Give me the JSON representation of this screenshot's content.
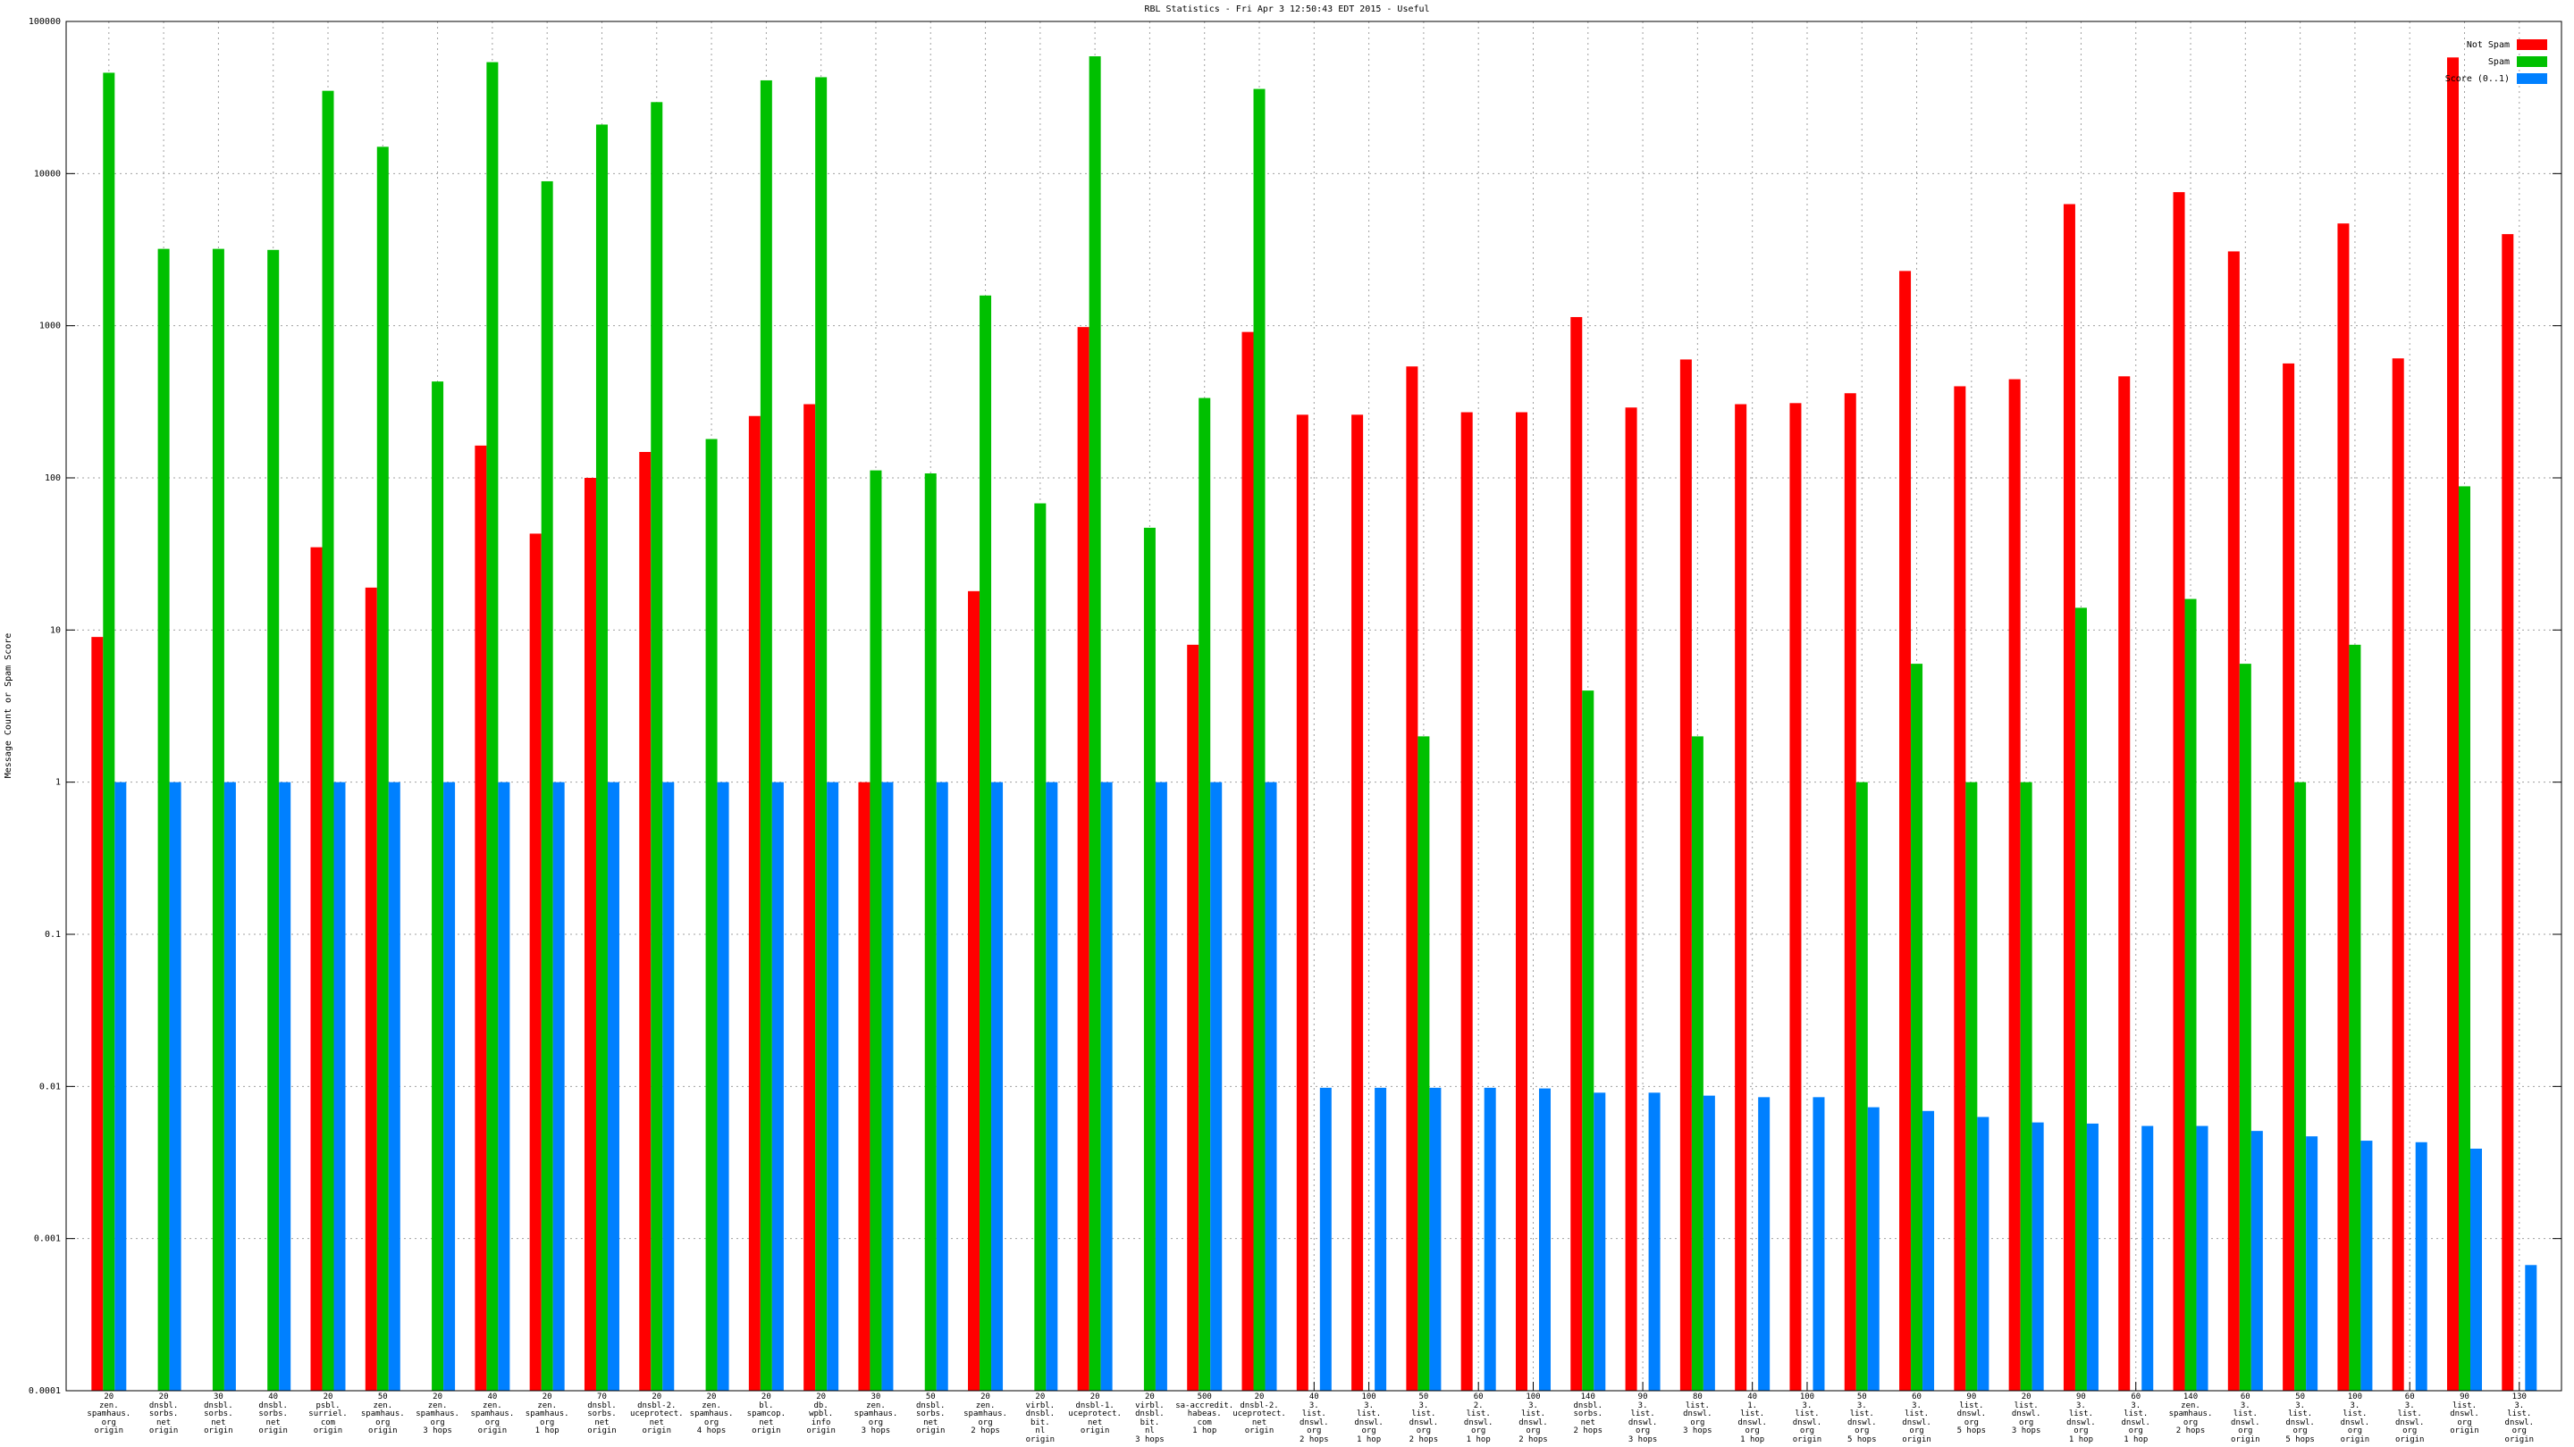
{
  "chart_data": {
    "type": "bar",
    "title": "RBL Statistics - Fri Apr  3 12:50:43 EDT 2015 - Useful",
    "y_label": "Message Count or Spam Score",
    "log_y": true,
    "grid": true,
    "legend": "upper right",
    "ylim": [
      0.0001,
      100000
    ],
    "yticks": [
      0.0001,
      0.001,
      0.01,
      0.1,
      1,
      10,
      100,
      1000,
      10000,
      100000
    ],
    "categories": [
      "20\nzen.\nspamhaus.\norg\norigin",
      "20\ndnsbl.\nsorbs.\nnet\norigin",
      "30\ndnsbl.\nsorbs.\nnet\norigin",
      "40\ndnsbl.\nsorbs.\nnet\norigin",
      "20\npsbl.\nsurriel.\ncom\norigin",
      "50\nzen.\nspamhaus.\norg\norigin",
      "20\nzen.\nspamhaus.\norg\n3 hops",
      "40\nzen.\nspamhaus.\norg\norigin",
      "20\nzen.\nspamhaus.\norg\n1 hop",
      "70\ndnsbl.\nsorbs.\nnet\norigin",
      "20\ndnsbl-2.\nuceprotect.\nnet\norigin",
      "20\nzen.\nspamhaus.\norg\n4 hops",
      "20\nbl.\nspamcop.\nnet\norigin",
      "20\ndb.\nwpbl.\ninfo\norigin",
      "30\nzen.\nspamhaus.\norg\n3 hops",
      "50\ndnsbl.\nsorbs.\nnet\norigin",
      "20\nzen.\nspamhaus.\norg\n2 hops",
      "20\nvirbl.\ndnsbl.\nbit.\nnl\norigin",
      "20\ndnsbl-1.\nuceprotect.\nnet\norigin",
      "20\nvirbl.\ndnsbl.\nbit.\nnl\n3 hops",
      "500\nsa-accredit.\nhabeas.\ncom\n1 hop",
      "20\ndnsbl-2.\nuceprotect.\nnet\norigin",
      "40\n3.\nlist.\ndnswl.\norg\n2 hops",
      "100\n3.\nlist.\ndnswl.\norg\n1 hop",
      "50\n3.\nlist.\ndnswl.\norg\n2 hops",
      "60\n2.\nlist.\ndnswl.\norg\n1 hop",
      "100\n3.\nlist.\ndnswl.\norg\n2 hops",
      "140\ndnsbl.\nsorbs.\nnet\n2 hops",
      "90\n3.\nlist.\ndnswl.\norg\n3 hops",
      "80\nlist.\ndnswl.\norg\n3 hops",
      "40\n1.\nlist.\ndnswl.\norg\n1 hop",
      "100\n3.\nlist.\ndnswl.\norg\norigin",
      "50\n3.\nlist.\ndnswl.\norg\n5 hops",
      "60\n3.\nlist.\ndnswl.\norg\norigin",
      "90\nlist.\ndnswl.\norg\n5 hops",
      "20\nlist.\ndnswl.\norg\n3 hops",
      "90\n3.\nlist.\ndnswl.\norg\n1 hop",
      "60\n3.\nlist.\ndnswl.\norg\n1 hop",
      "140\nzen.\nspamhaus.\norg\n2 hops",
      "60\n3.\nlist.\ndnswl.\norg\norigin",
      "50\n3.\nlist.\ndnswl.\norg\n5 hops",
      "100\n3.\nlist.\ndnswl.\norg\norigin",
      "60\n3.\nlist.\ndnswl.\norg\norigin",
      "90\nlist.\ndnswl.\norg\norigin",
      "130\n3.\nlist.\ndnswl.\norg\norigin"
    ],
    "series": [
      {
        "name": "Not Spam",
        "color": "#ff0000",
        "values": [
          9,
          null,
          null,
          null,
          35,
          19,
          null,
          163,
          43,
          100,
          148,
          null,
          255,
          305,
          1,
          null,
          18,
          null,
          980,
          null,
          8,
          910,
          260,
          260,
          540,
          270,
          270,
          1140,
          290,
          600,
          305,
          310,
          360,
          2290,
          400,
          445,
          6300,
          465,
          7550,
          3080,
          565,
          4700,
          610,
          58000,
          4000
        ]
      },
      {
        "name": "Spam",
        "color": "#00c000",
        "values": [
          46000,
          3200,
          3200,
          3150,
          35000,
          15000,
          430,
          54000,
          8900,
          21000,
          29500,
          180,
          41000,
          43000,
          112,
          107,
          1580,
          68,
          59000,
          47,
          335,
          36000,
          null,
          null,
          2,
          null,
          null,
          4,
          null,
          2,
          null,
          null,
          1,
          6,
          1,
          1,
          14,
          null,
          16,
          6,
          1,
          8,
          null,
          88,
          null
        ]
      },
      {
        "name": "Score (0..1)",
        "color": "#0080ff",
        "values": [
          1,
          1,
          1,
          1,
          1,
          1,
          1,
          1,
          1,
          1,
          1,
          1,
          1,
          1,
          1,
          1,
          1,
          1,
          1,
          1,
          1,
          1,
          0.0098,
          0.0098,
          0.0098,
          0.0098,
          0.0097,
          0.0091,
          0.0091,
          0.0087,
          0.0085,
          0.0085,
          0.0073,
          0.0069,
          0.0063,
          0.0058,
          0.0057,
          0.0055,
          0.0055,
          0.0051,
          0.0047,
          0.0044,
          0.0043,
          0.0039,
          0.00067
        ]
      }
    ]
  }
}
